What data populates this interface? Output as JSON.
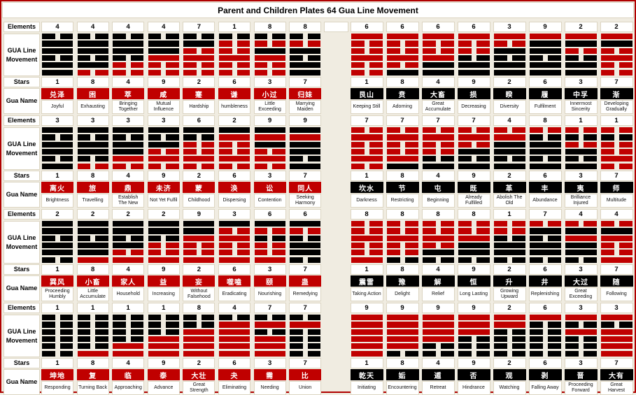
{
  "title": "Parent and Children Plates 64 Gua Line Movement",
  "row_labels": {
    "elements": "Elements",
    "gua_line_movement": "GUA Line\nMovement",
    "stars": "Stars",
    "gua_name": "Gua Name"
  },
  "colors": {
    "red": "#c00000",
    "black": "#000000",
    "background": "#f0ece1",
    "cell_border": "#dcd5c2",
    "name_bg_left": "#c00000",
    "name_bg_right": "#000000",
    "name_text": "#ffffff"
  },
  "line_code_legend": "per gua, lines listed top line first; s=solid, b=broken; B=black, R=red",
  "blocks": [
    {
      "left": {
        "name_bg": "red",
        "elements": [
          "4",
          "4",
          "4",
          "4",
          "7",
          "1",
          "8",
          "8"
        ],
        "stars": [
          "1",
          "8",
          "4",
          "9",
          "2",
          "6",
          "3",
          "7"
        ],
        "guas": [
          {
            "cn": "兑泽",
            "en": "Joyful",
            "lines": [
              "bB",
              "sB",
              "sB",
              "bB",
              "sB",
              "sB"
            ]
          },
          {
            "cn": "困",
            "en": "Exhausting",
            "lines": [
              "bB",
              "sB",
              "sB",
              "bB",
              "sB",
              "bR"
            ]
          },
          {
            "cn": "萃",
            "en": "Bringing Together",
            "lines": [
              "bB",
              "sB",
              "sB",
              "bB",
              "bR",
              "bR"
            ]
          },
          {
            "cn": "咸",
            "en": "Mutual Influence",
            "lines": [
              "bB",
              "sB",
              "sB",
              "sR",
              "bR",
              "bR"
            ]
          },
          {
            "cn": "蹇",
            "en": "Hardship",
            "lines": [
              "bB",
              "sB",
              "bR",
              "sR",
              "bR",
              "bR"
            ]
          },
          {
            "cn": "谦",
            "en": "humbleness",
            "lines": [
              "bB",
              "bR",
              "bR",
              "sR",
              "bR",
              "bR"
            ]
          },
          {
            "cn": "小过",
            "en": "Little Exceeding",
            "lines": [
              "bB",
              "bR",
              "sB",
              "sR",
              "bR",
              "bR"
            ]
          },
          {
            "cn": "归妹",
            "en": "Marrying Maiden",
            "lines": [
              "bB",
              "bR",
              "sB",
              "bB",
              "sB",
              "sB"
            ]
          }
        ]
      },
      "right": {
        "name_bg": "black",
        "elements": [
          "6",
          "6",
          "6",
          "6",
          "3",
          "9",
          "2",
          "2"
        ],
        "stars": [
          "1",
          "8",
          "4",
          "9",
          "2",
          "6",
          "3",
          "7"
        ],
        "guas": [
          {
            "cn": "艮山",
            "en": "Keeping Still",
            "lines": [
              "sR",
              "bR",
              "bR",
              "sR",
              "bR",
              "bR"
            ]
          },
          {
            "cn": "贲",
            "en": "Adorning",
            "lines": [
              "sR",
              "bR",
              "bR",
              "sR",
              "bR",
              "sB"
            ]
          },
          {
            "cn": "大畜",
            "en": "Great Accumulate",
            "lines": [
              "sR",
              "bR",
              "bR",
              "sR",
              "sB",
              "sB"
            ]
          },
          {
            "cn": "损",
            "en": "Decreasing",
            "lines": [
              "sR",
              "bR",
              "bR",
              "bB",
              "sB",
              "sB"
            ]
          },
          {
            "cn": "睽",
            "en": "Diversity",
            "lines": [
              "sR",
              "bR",
              "sB",
              "bB",
              "sB",
              "sB"
            ]
          },
          {
            "cn": "履",
            "en": "Fulfilment",
            "lines": [
              "sR",
              "sB",
              "sB",
              "bB",
              "sB",
              "sB"
            ]
          },
          {
            "cn": "中孚",
            "en": "Innermost Sincerity",
            "lines": [
              "sR",
              "sB",
              "bR",
              "bB",
              "sB",
              "sB"
            ]
          },
          {
            "cn": "渐",
            "en": "Developing Gradually",
            "lines": [
              "sR",
              "sB",
              "bR",
              "sR",
              "bR",
              "bR"
            ]
          }
        ]
      }
    },
    {
      "left": {
        "name_bg": "red",
        "elements": [
          "3",
          "3",
          "3",
          "3",
          "6",
          "2",
          "9",
          "9"
        ],
        "stars": [
          "1",
          "8",
          "4",
          "9",
          "2",
          "6",
          "3",
          "7"
        ],
        "guas": [
          {
            "cn": "离火",
            "en": "Brightness",
            "lines": [
              "sB",
              "bB",
              "sB",
              "sB",
              "bB",
              "sB"
            ]
          },
          {
            "cn": "旅",
            "en": "Travelling",
            "lines": [
              "sB",
              "bB",
              "sB",
              "sB",
              "bB",
              "bR"
            ]
          },
          {
            "cn": "鼎",
            "en": "Establish The New",
            "lines": [
              "sB",
              "bB",
              "sB",
              "sB",
              "sR",
              "bR"
            ]
          },
          {
            "cn": "未济",
            "en": "Not Yet Fulfil",
            "lines": [
              "sB",
              "bB",
              "sB",
              "bR",
              "sR",
              "bR"
            ]
          },
          {
            "cn": "蒙",
            "en": "Childhood",
            "lines": [
              "sB",
              "bB",
              "bR",
              "bR",
              "sR",
              "bR"
            ]
          },
          {
            "cn": "涣",
            "en": "Dispersing",
            "lines": [
              "sB",
              "sR",
              "bR",
              "bR",
              "sR",
              "bR"
            ]
          },
          {
            "cn": "讼",
            "en": "Contention",
            "lines": [
              "sB",
              "sR",
              "sB",
              "bR",
              "sR",
              "bR"
            ]
          },
          {
            "cn": "同人",
            "en": "Seeking Harmony",
            "lines": [
              "sB",
              "sR",
              "sB",
              "sB",
              "bB",
              "sB"
            ]
          }
        ]
      },
      "right": {
        "name_bg": "black",
        "elements": [
          "7",
          "7",
          "7",
          "7",
          "4",
          "8",
          "1",
          "1"
        ],
        "stars": [
          "1",
          "8",
          "4",
          "9",
          "2",
          "6",
          "3",
          "7"
        ],
        "guas": [
          {
            "cn": "坎水",
            "en": "Darkness",
            "lines": [
              "bR",
              "sR",
              "bR",
              "bR",
              "sR",
              "bR"
            ]
          },
          {
            "cn": "节",
            "en": "Restricting",
            "lines": [
              "bR",
              "sR",
              "bR",
              "bR",
              "sR",
              "sB"
            ]
          },
          {
            "cn": "屯",
            "en": "Beginning",
            "lines": [
              "bR",
              "sR",
              "bR",
              "bR",
              "bB",
              "sB"
            ]
          },
          {
            "cn": "既",
            "en": "Already Fulfilled",
            "lines": [
              "bR",
              "sR",
              "bR",
              "sB",
              "bB",
              "sB"
            ]
          },
          {
            "cn": "革",
            "en": "Abolish The Old",
            "lines": [
              "bR",
              "sR",
              "sB",
              "sB",
              "bB",
              "sB"
            ]
          },
          {
            "cn": "丰",
            "en": "Abundance",
            "lines": [
              "bR",
              "bB",
              "sB",
              "sB",
              "bB",
              "sB"
            ]
          },
          {
            "cn": "夷",
            "en": "Brilliance Injured",
            "lines": [
              "bR",
              "bB",
              "bR",
              "sB",
              "bB",
              "sB"
            ]
          },
          {
            "cn": "师",
            "en": "Multitude",
            "lines": [
              "bR",
              "bB",
              "bR",
              "bR",
              "sR",
              "bR"
            ]
          }
        ]
      }
    },
    {
      "left": {
        "name_bg": "red",
        "elements": [
          "2",
          "2",
          "2",
          "2",
          "9",
          "3",
          "6",
          "6"
        ],
        "stars": [
          "1",
          "8",
          "4",
          "9",
          "2",
          "6",
          "3",
          "7"
        ],
        "guas": [
          {
            "cn": "巽风",
            "en": "Proceeding Humbly",
            "lines": [
              "sB",
              "sB",
              "bB",
              "sB",
              "sB",
              "bB"
            ]
          },
          {
            "cn": "小畜",
            "en": "Little Accumulate",
            "lines": [
              "sB",
              "sB",
              "bB",
              "sB",
              "sB",
              "sR"
            ]
          },
          {
            "cn": "家人",
            "en": "Household",
            "lines": [
              "sB",
              "sB",
              "bB",
              "sB",
              "bR",
              "sR"
            ]
          },
          {
            "cn": "益",
            "en": "Increasing",
            "lines": [
              "sB",
              "sB",
              "bB",
              "bR",
              "bR",
              "sR"
            ]
          },
          {
            "cn": "妄",
            "en": "Without Falsehood",
            "lines": [
              "sB",
              "sB",
              "sR",
              "bR",
              "bR",
              "sR"
            ]
          },
          {
            "cn": "噬嗑",
            "en": "Eradicating",
            "lines": [
              "sB",
              "bR",
              "sR",
              "bR",
              "bR",
              "sR"
            ]
          },
          {
            "cn": "颐",
            "en": "Nourishing",
            "lines": [
              "sB",
              "bR",
              "bB",
              "bR",
              "bR",
              "sR"
            ]
          },
          {
            "cn": "蛊",
            "en": "Remedying",
            "lines": [
              "sB",
              "bR",
              "bB",
              "sB",
              "sB",
              "bB"
            ]
          }
        ]
      },
      "right": {
        "name_bg": "black",
        "elements": [
          "8",
          "8",
          "8",
          "8",
          "1",
          "7",
          "4",
          "4"
        ],
        "stars": [
          "1",
          "8",
          "4",
          "9",
          "2",
          "6",
          "3",
          "7"
        ],
        "guas": [
          {
            "cn": "震雷",
            "en": "Taking Action",
            "lines": [
              "bR",
              "bR",
              "sR",
              "bR",
              "bR",
              "sR"
            ]
          },
          {
            "cn": "豫",
            "en": "Delight",
            "lines": [
              "bR",
              "bR",
              "sR",
              "bR",
              "bR",
              "bB"
            ]
          },
          {
            "cn": "解",
            "en": "Relief",
            "lines": [
              "bR",
              "bR",
              "sR",
              "bR",
              "sB",
              "bB"
            ]
          },
          {
            "cn": "恒",
            "en": "Long Lasting",
            "lines": [
              "bR",
              "bR",
              "sR",
              "sB",
              "sB",
              "bB"
            ]
          },
          {
            "cn": "升",
            "en": "Growing Upward",
            "lines": [
              "bR",
              "bR",
              "bB",
              "sB",
              "sB",
              "bB"
            ]
          },
          {
            "cn": "井",
            "en": "Replenishing",
            "lines": [
              "bR",
              "sB",
              "bB",
              "sB",
              "sB",
              "bB"
            ]
          },
          {
            "cn": "大过",
            "en": "Great Exceeding",
            "lines": [
              "bR",
              "sB",
              "sR",
              "sB",
              "sB",
              "bB"
            ]
          },
          {
            "cn": "随",
            "en": "Following",
            "lines": [
              "bR",
              "sB",
              "sR",
              "bR",
              "bR",
              "sR"
            ]
          }
        ]
      }
    },
    {
      "left": {
        "name_bg": "red",
        "elements": [
          "1",
          "1",
          "1",
          "1",
          "8",
          "4",
          "7",
          "7"
        ],
        "stars": [
          "1",
          "8",
          "4",
          "9",
          "2",
          "6",
          "3",
          "7"
        ],
        "guas": [
          {
            "cn": "坤地",
            "en": "Responding",
            "lines": [
              "bB",
              "bB",
              "bB",
              "bB",
              "bB",
              "bB"
            ]
          },
          {
            "cn": "复",
            "en": "Turning Back",
            "lines": [
              "bB",
              "bB",
              "bB",
              "bB",
              "bB",
              "sR"
            ]
          },
          {
            "cn": "临",
            "en": "Approaching",
            "lines": [
              "bB",
              "bB",
              "bB",
              "bB",
              "sR",
              "sR"
            ]
          },
          {
            "cn": "泰",
            "en": "Advance",
            "lines": [
              "bB",
              "bB",
              "bB",
              "sR",
              "sR",
              "sR"
            ]
          },
          {
            "cn": "大壮",
            "en": "Great Strength",
            "lines": [
              "bB",
              "bB",
              "sR",
              "sR",
              "sR",
              "sR"
            ]
          },
          {
            "cn": "夬",
            "en": "Eliminating",
            "lines": [
              "bB",
              "sR",
              "sR",
              "sR",
              "sR",
              "sR"
            ]
          },
          {
            "cn": "需",
            "en": "Needing",
            "lines": [
              "bB",
              "sR",
              "bB",
              "sR",
              "sR",
              "sR"
            ]
          },
          {
            "cn": "比",
            "en": "Union",
            "lines": [
              "bB",
              "sR",
              "bB",
              "bB",
              "bB",
              "bB"
            ]
          }
        ]
      },
      "right": {
        "name_bg": "black",
        "elements": [
          "9",
          "9",
          "9",
          "9",
          "2",
          "6",
          "3",
          "3"
        ],
        "stars": [
          "1",
          "8",
          "4",
          "9",
          "2",
          "6",
          "3",
          "7"
        ],
        "guas": [
          {
            "cn": "乾天",
            "en": "Initiating",
            "lines": [
              "sR",
              "sR",
              "sR",
              "sR",
              "sR",
              "sR"
            ]
          },
          {
            "cn": "姤",
            "en": "Encountering",
            "lines": [
              "sR",
              "sR",
              "sR",
              "sR",
              "sR",
              "bB"
            ]
          },
          {
            "cn": "遁",
            "en": "Retreat",
            "lines": [
              "sR",
              "sR",
              "sR",
              "sR",
              "bB",
              "bB"
            ]
          },
          {
            "cn": "否",
            "en": "Hindrance",
            "lines": [
              "sR",
              "sR",
              "sR",
              "bB",
              "bB",
              "bB"
            ]
          },
          {
            "cn": "观",
            "en": "Watching",
            "lines": [
              "sR",
              "sR",
              "bB",
              "bB",
              "bB",
              "bB"
            ]
          },
          {
            "cn": "剥",
            "en": "Falling Away",
            "lines": [
              "sR",
              "bB",
              "bB",
              "bB",
              "bB",
              "bB"
            ]
          },
          {
            "cn": "晋",
            "en": "Proceeding Forward",
            "lines": [
              "sR",
              "bB",
              "sR",
              "bB",
              "bB",
              "bB"
            ]
          },
          {
            "cn": "大有",
            "en": "Great Harvest",
            "lines": [
              "sR",
              "bB",
              "sR",
              "sR",
              "sR",
              "sR"
            ]
          }
        ]
      }
    }
  ]
}
